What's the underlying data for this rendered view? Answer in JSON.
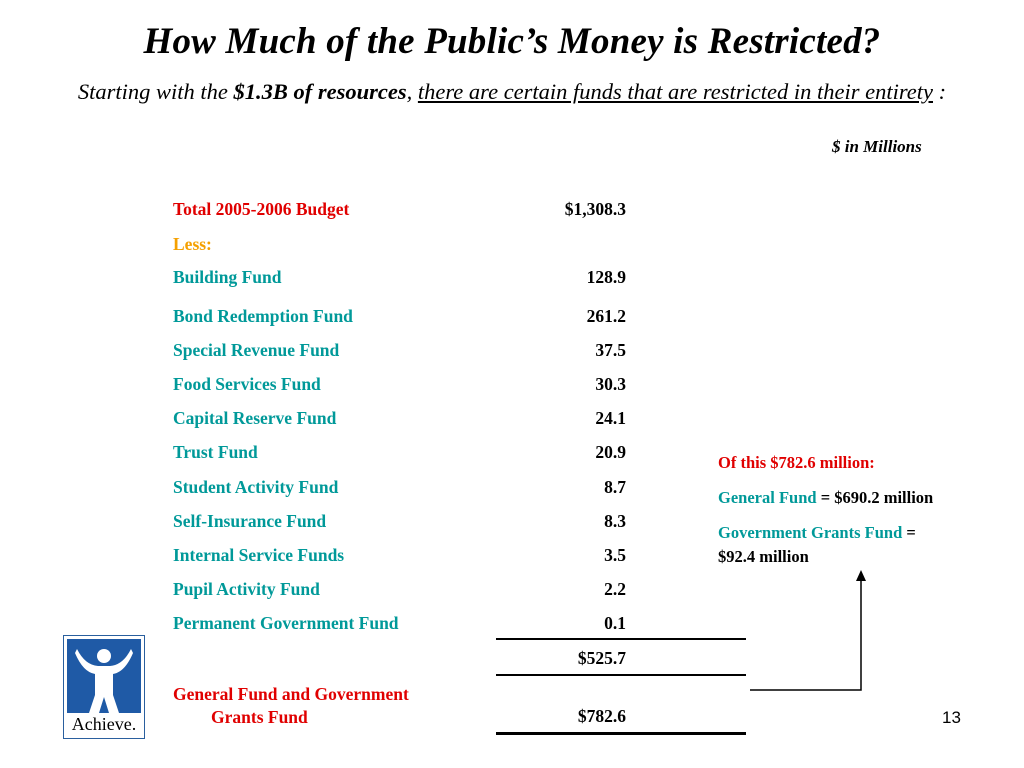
{
  "title": "How Much of the Public’s Money is Restricted?",
  "subtitle": {
    "part1": "Starting with the ",
    "bold": "$1.3B of resources",
    "comma": ",",
    "space": " ",
    "underlined": "there are certain funds that are restricted in their entirety",
    "tail": " :"
  },
  "units": "$ in Millions",
  "table": {
    "total_budget": {
      "label": "Total 2005-2006 Budget",
      "value": "$1,308.3"
    },
    "less_label": "Less:",
    "funds": [
      {
        "label": "Building Fund",
        "value": "128.9"
      },
      {
        "label": "Bond Redemption Fund",
        "value": "261.2"
      },
      {
        "label": "Special Revenue Fund",
        "value": "37.5"
      },
      {
        "label": "Food Services Fund",
        "value": "30.3"
      },
      {
        "label": "Capital Reserve Fund",
        "value": "24.1"
      },
      {
        "label": "Trust Fund",
        "value": "20.9"
      },
      {
        "label": "Student Activity Fund",
        "value": "8.7"
      },
      {
        "label": "Self-Insurance Fund",
        "value": "8.3"
      },
      {
        "label": "Internal Service Funds",
        "value": "3.5"
      },
      {
        "label": "Pupil Activity Fund",
        "value": "2.2"
      },
      {
        "label": "Permanent Government Fund",
        "value": "0.1"
      }
    ],
    "subtotal": "$525.7",
    "remaining": {
      "label_line1": "General Fund and Government",
      "label_line2": "Grants Fund",
      "value": "$782.6"
    }
  },
  "note": {
    "heading": "Of this $782.6 million:",
    "general_fund_label": "General Fund",
    "general_fund_value": " = $690.2 million",
    "grants_label": "Government Grants Fund",
    "grants_eq": " =",
    "grants_value": "$92.4 million"
  },
  "logo_text": "Achieve.",
  "page_number": "13",
  "colors": {
    "teal": "#009999",
    "red": "#e00000",
    "orange": "#f5a000",
    "logo_blue": "#1f5aa6"
  }
}
